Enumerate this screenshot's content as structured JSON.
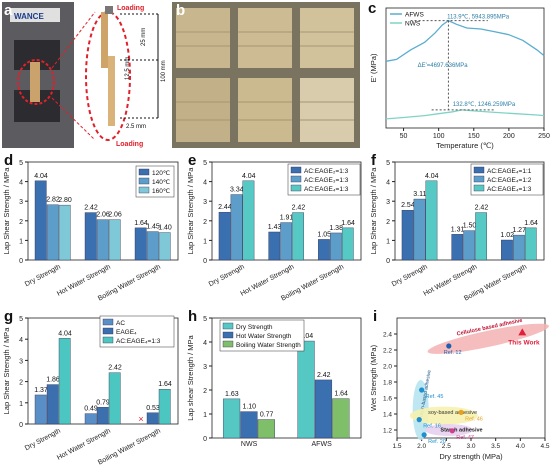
{
  "panel_labels": {
    "a": "a",
    "b": "b",
    "c": "c",
    "d": "d",
    "e": "e",
    "f": "f",
    "g": "g",
    "h": "h",
    "i": "i"
  },
  "panel_a": {
    "loading_top": "Loading",
    "loading_bottom": "Loading",
    "dim_25": "25 mm",
    "dim_125": "12.5 mm",
    "dim_100": "100 mm",
    "dim_25b": "2.5 mm",
    "machine_label": "WANCE"
  },
  "chart_data": [
    {
      "id": "c",
      "type": "line",
      "xlabel": "Temperature (℃)",
      "ylabel": "E' (MPa)",
      "xlim": [
        25,
        250
      ],
      "xticks": [
        50,
        100,
        150,
        200,
        250
      ],
      "series": [
        {
          "name": "AFWS",
          "color": "#5aaed0",
          "x": [
            25,
            40,
            60,
            80,
            95,
            105,
            113.9,
            125,
            140,
            160,
            180,
            200,
            220,
            240,
            250
          ],
          "y": [
            3.8,
            3.9,
            4.4,
            4.8,
            5.3,
            5.7,
            5.94,
            5.75,
            5.55,
            5.5,
            5.35,
            5.2,
            4.9,
            4.4,
            4.1
          ]
        },
        {
          "name": "NWS",
          "color": "#7fd3c6",
          "x": [
            25,
            50,
            80,
            100,
            120,
            132.8,
            150,
            180,
            210,
            240,
            250
          ],
          "y": [
            0.78,
            0.85,
            0.95,
            1.05,
            1.15,
            1.25,
            1.2,
            1.12,
            1.05,
            0.98,
            0.95
          ]
        }
      ],
      "annotations": [
        "113.9℃, 5943.895MPa",
        "ΔE'=4697.636MPa",
        "132.8℃, 1246.259MPa"
      ]
    },
    {
      "id": "d",
      "type": "bar",
      "ylabel": "Lap Shear Strength / MPa",
      "ylim": [
        0,
        5
      ],
      "categories": [
        "Dry Strength",
        "Hot Water Strength",
        "Boiling Water Strength"
      ],
      "series": [
        {
          "name": "120℃",
          "color": "#3a6fb0",
          "values": [
            4.04,
            2.42,
            1.64
          ]
        },
        {
          "name": "140℃",
          "color": "#5c9ec9",
          "values": [
            2.82,
            2.06,
            1.45
          ]
        },
        {
          "name": "160℃",
          "color": "#7ec8d8",
          "values": [
            2.8,
            2.06,
            1.4
          ]
        }
      ]
    },
    {
      "id": "e",
      "type": "bar",
      "ylabel": "Lap Shear Strength / MPa",
      "ylim": [
        0,
        5
      ],
      "categories": [
        "Dry Strength",
        "Hot Water Strength",
        "Boiling Water Strength"
      ],
      "series": [
        {
          "name": "AC:EAGE₂=1:3",
          "color": "#3a6fb0",
          "values": [
            2.44,
            1.43,
            1.05
          ]
        },
        {
          "name": "AC:EAGE₃=1:3",
          "color": "#5c9ec9",
          "values": [
            3.34,
            1.91,
            1.38
          ]
        },
        {
          "name": "AC:EAGE₄=1:3",
          "color": "#57c9c4",
          "values": [
            4.04,
            2.42,
            1.64
          ]
        }
      ]
    },
    {
      "id": "f",
      "type": "bar",
      "ylabel": "Lap Shear Strength / MPa",
      "ylim": [
        0,
        5
      ],
      "categories": [
        "Dry Strength",
        "Hot Water Strength",
        "Boiling Water Strength"
      ],
      "series": [
        {
          "name": "AC:EAGE₄=1:1",
          "color": "#3a6fb0",
          "values": [
            2.54,
            1.31,
            1.02
          ]
        },
        {
          "name": "AC:EAGE₄=1:2",
          "color": "#5c9ec9",
          "values": [
            3.11,
            1.5,
            1.27
          ]
        },
        {
          "name": "AC:EAGE₄=1:3",
          "color": "#57c9c4",
          "values": [
            4.04,
            2.42,
            1.64
          ]
        }
      ]
    },
    {
      "id": "g",
      "type": "bar",
      "ylabel": "Lap Shear Strength / MPa",
      "ylim": [
        0,
        5
      ],
      "categories": [
        "Dry Strength",
        "Hot Water Strength",
        "Boiling Water Strength"
      ],
      "series": [
        {
          "name": "AC",
          "color": "#5a8ec6",
          "values": [
            1.37,
            0.49,
            0.0
          ]
        },
        {
          "name": "EAGE₄",
          "color": "#3b6fae",
          "values": [
            1.86,
            0.79,
            0.53
          ]
        },
        {
          "name": "AC:EAGE₄=1:3",
          "color": "#4cc6c0",
          "values": [
            4.04,
            2.42,
            1.64
          ]
        }
      ],
      "value_labels": [
        [
          "1.37",
          "0.49",
          ""
        ],
        [
          "1.86",
          "0.79",
          "0.53"
        ],
        [
          "4.04",
          "2.42",
          "1.64"
        ]
      ],
      "failed_marker": "×"
    },
    {
      "id": "h",
      "type": "bar",
      "ylabel": "Lap shear Strength / MPa",
      "ylim": [
        0,
        5
      ],
      "categories": [
        "NWS",
        "AFWS"
      ],
      "series": [
        {
          "name": "Dry Strength",
          "color": "#56c8c4",
          "values": [
            1.63,
            4.04
          ]
        },
        {
          "name": "Hot Water Strength",
          "color": "#3a6fb0",
          "values": [
            1.1,
            2.42
          ]
        },
        {
          "name": "Boiling Water Strength",
          "color": "#7fbf6a",
          "values": [
            0.77,
            1.64
          ]
        }
      ]
    },
    {
      "id": "i",
      "type": "scatter",
      "xlabel": "Dry strength (MPa)",
      "ylabel": "Wet Strength (MPa)",
      "xlim": [
        1.5,
        4.5
      ],
      "ylim": [
        1.1,
        2.6
      ],
      "xticks": [
        1.5,
        2.0,
        2.5,
        3.0,
        3.5,
        4.0,
        4.5
      ],
      "yticks": [
        1.2,
        1.4,
        1.6,
        1.8,
        2.0,
        2.2,
        2.4
      ],
      "points": [
        {
          "label": "Ref. 12",
          "x": 2.55,
          "y": 2.25,
          "color": "#1f5fb0"
        },
        {
          "label": "This Work",
          "x": 4.04,
          "y": 2.42,
          "color": "#e0203c"
        },
        {
          "label": "Ref. 45",
          "x": 2.0,
          "y": 1.7,
          "color": "#1f8fd0"
        },
        {
          "label": "Ref. 46",
          "x": 2.8,
          "y": 1.42,
          "color": "#e8a020"
        },
        {
          "label": "Ref. 16",
          "x": 1.95,
          "y": 1.33,
          "color": "#1f8fd0"
        },
        {
          "label": "Ref. 20",
          "x": 2.05,
          "y": 1.14,
          "color": "#1f8fd0"
        },
        {
          "label": "Ref. 47",
          "x": 2.62,
          "y": 1.19,
          "color": "#d04090"
        }
      ],
      "regions": [
        {
          "label": "Cellulose based adhesive",
          "color": "#f3b2b2"
        },
        {
          "label": "Protein-based adhesive",
          "color": "#b7e4f0"
        },
        {
          "label": "soy-based adhesive",
          "color": "#f6f2b0"
        },
        {
          "label": "Starch adhesive",
          "color": "#e8d0f0"
        }
      ]
    }
  ]
}
